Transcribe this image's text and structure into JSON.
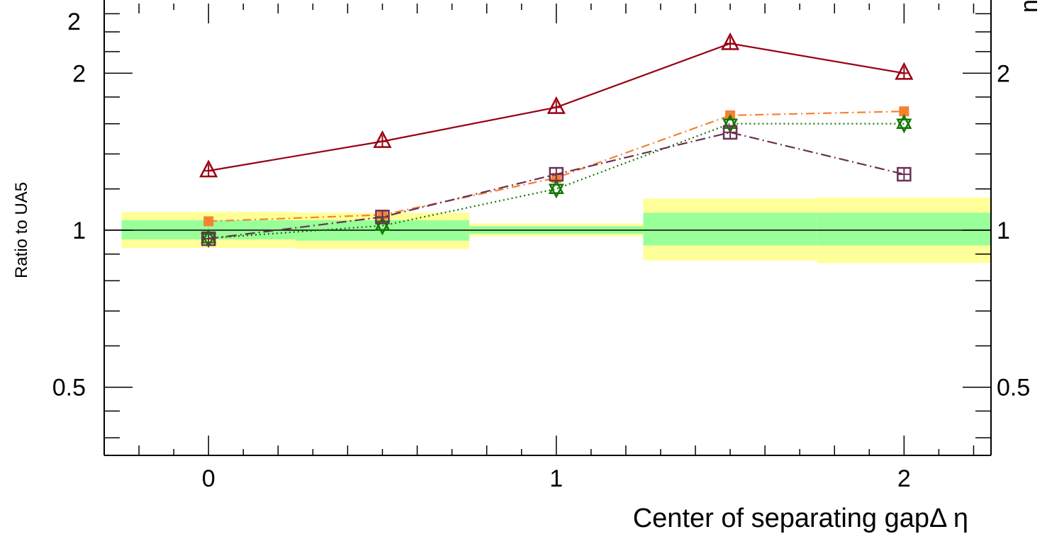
{
  "chart_data": {
    "type": "line",
    "xlabel": "Center of separating gapΔ η",
    "ylabel": "Ratio to UA5",
    "xlim": [
      -0.3,
      2.25
    ],
    "ylim": [
      0.37,
      2.72
    ],
    "y_scale": "log",
    "x_ticks": [
      0,
      1,
      2
    ],
    "x_tick_labels": [
      "0",
      "1",
      "2"
    ],
    "y_ticks": [
      0.5,
      1,
      2
    ],
    "y_tick_labels": [
      "0.5",
      "1",
      "2"
    ],
    "top_clipped_labels": {
      "left": "2",
      "right": "n"
    },
    "reference_line": 1,
    "uncertainty_bands": [
      {
        "x_range": [
          -0.25,
          0.25
        ],
        "outer": [
          0.925,
          1.085
        ],
        "inner": [
          0.96,
          1.045
        ]
      },
      {
        "x_range": [
          0.25,
          0.75
        ],
        "outer": [
          0.92,
          1.08
        ],
        "inner": [
          0.955,
          1.045
        ]
      },
      {
        "x_range": [
          0.75,
          1.25
        ],
        "outer": [
          0.973,
          1.03
        ],
        "inner": [
          0.984,
          1.018
        ]
      },
      {
        "x_range": [
          1.25,
          1.75
        ],
        "outer": [
          0.875,
          1.15
        ],
        "inner": [
          0.935,
          1.08
        ]
      },
      {
        "x_range": [
          1.75,
          2.25
        ],
        "outer": [
          0.865,
          1.155
        ],
        "inner": [
          0.935,
          1.08
        ]
      }
    ],
    "series": [
      {
        "x": [
          0,
          0.5,
          1,
          1.5,
          2
        ],
        "values": [
          1.3,
          1.48,
          1.72,
          2.28,
          2.0
        ],
        "color": "#990011",
        "marker": "open-triangle-cross",
        "line": "solid"
      },
      {
        "x": [
          0,
          0.5,
          1,
          1.5,
          2
        ],
        "values": [
          1.04,
          1.07,
          1.26,
          1.66,
          1.69
        ],
        "color": "#f58231",
        "marker": "filled-square",
        "line": "dash-dot"
      },
      {
        "x": [
          0,
          0.5,
          1,
          1.5,
          2
        ],
        "values": [
          0.965,
          1.02,
          1.2,
          1.6,
          1.6
        ],
        "color": "#117700",
        "marker": "star",
        "line": "dotted"
      },
      {
        "x": [
          0,
          0.5,
          1,
          1.5,
          2
        ],
        "values": [
          0.963,
          1.06,
          1.28,
          1.54,
          1.28
        ],
        "color": "#6b3052",
        "marker": "open-square-cross",
        "line": "long-dash-dot"
      }
    ],
    "colors": {
      "band_outer": "#ffff99",
      "band_inner": "#99ff99",
      "axis": "#000000"
    }
  }
}
